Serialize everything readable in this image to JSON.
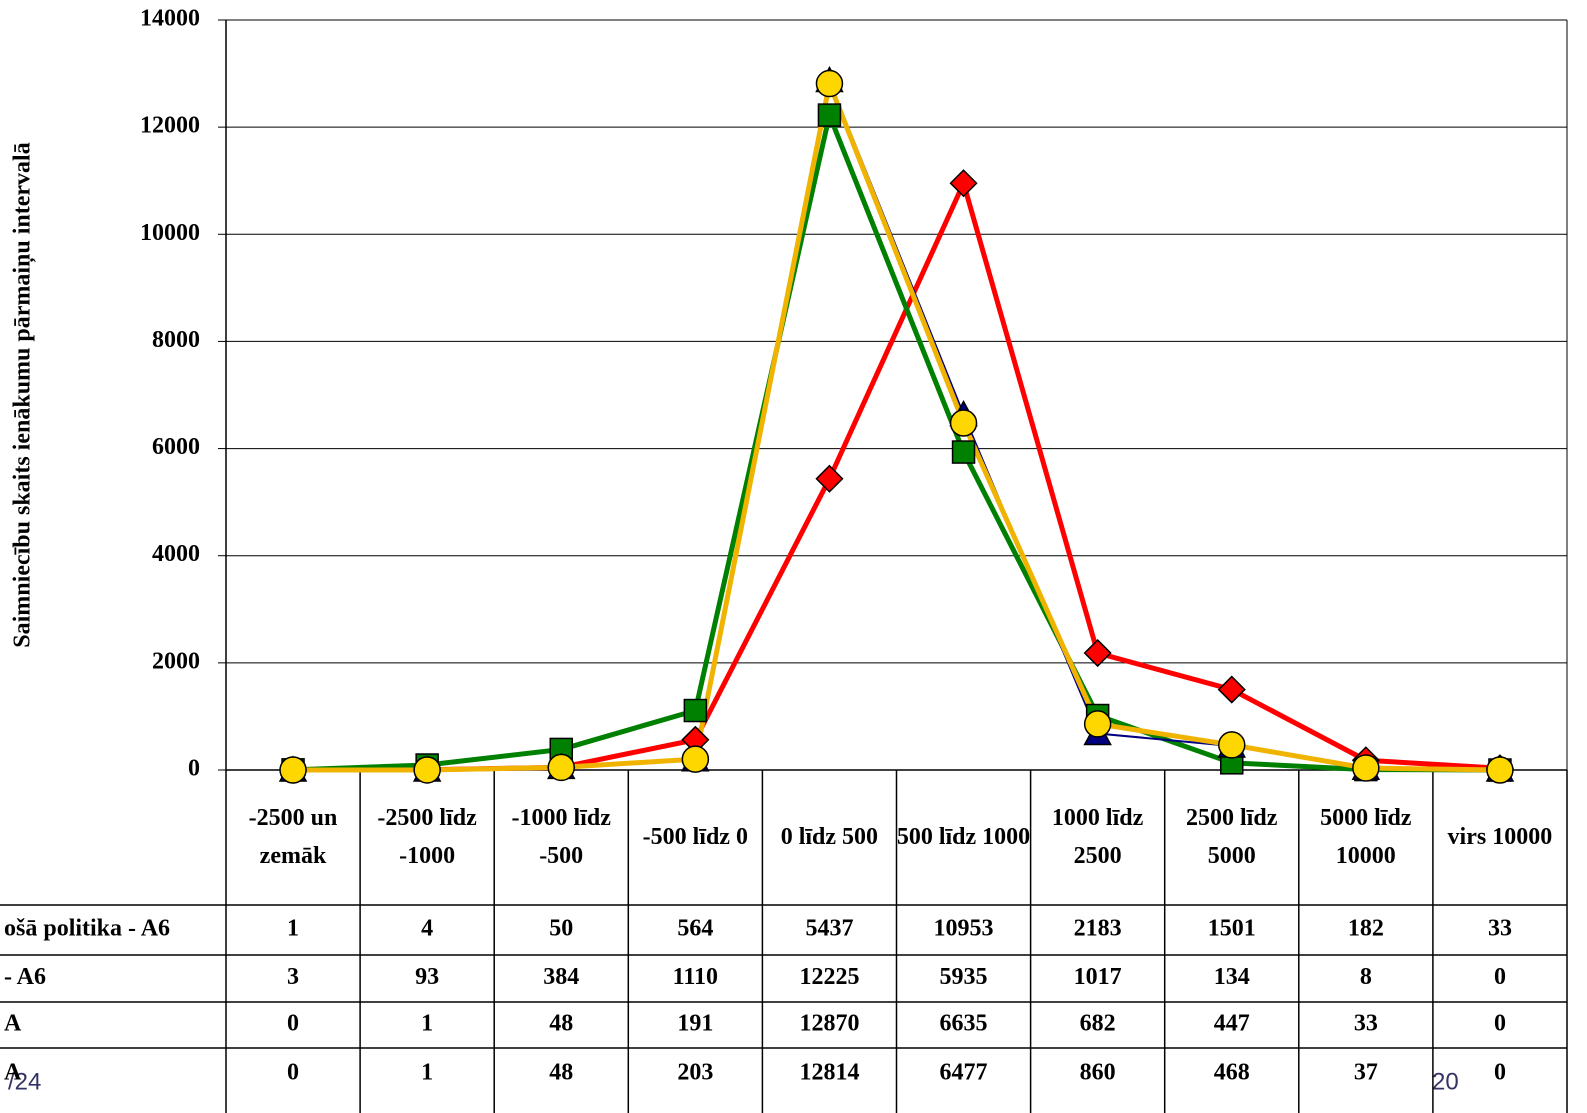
{
  "chart_data": {
    "type": "line",
    "y_label": "Saimniecību skaits ienākumu pārmaiņu intervalā",
    "categories": [
      "-2500 un zemāk",
      "-2500 līdz -1000",
      "-1000 līdz -500",
      "-500 līdz 0",
      "0 līdz 500",
      "500 līdz 1000",
      "1000 līdz 2500",
      "2500 līdz 5000",
      "5000 līdz 10000",
      "virs 10000"
    ],
    "series": [
      {
        "name": "ošā politika - A6",
        "color": "#ff0000",
        "marker": "diamond",
        "values": [
          1,
          4,
          50,
          564,
          5437,
          10953,
          2183,
          1501,
          182,
          33
        ]
      },
      {
        "name": "- A6",
        "color": "#008000",
        "marker": "square",
        "values": [
          3,
          93,
          384,
          1110,
          12225,
          5935,
          1017,
          134,
          8,
          0
        ]
      },
      {
        "name": "A",
        "color": "#000080",
        "marker": "triangle",
        "values": [
          0,
          1,
          48,
          191,
          12870,
          6635,
          682,
          447,
          33,
          0
        ]
      },
      {
        "name": "A",
        "color": "#f0b400",
        "marker": "circle",
        "values": [
          0,
          1,
          48,
          203,
          12814,
          6477,
          860,
          468,
          37,
          0
        ]
      }
    ],
    "ylim": [
      0,
      14000
    ],
    "yticks": [
      0,
      2000,
      4000,
      6000,
      8000,
      10000,
      12000,
      14000
    ],
    "grid": true
  },
  "footer": {
    "left": "/24",
    "right": "20"
  }
}
